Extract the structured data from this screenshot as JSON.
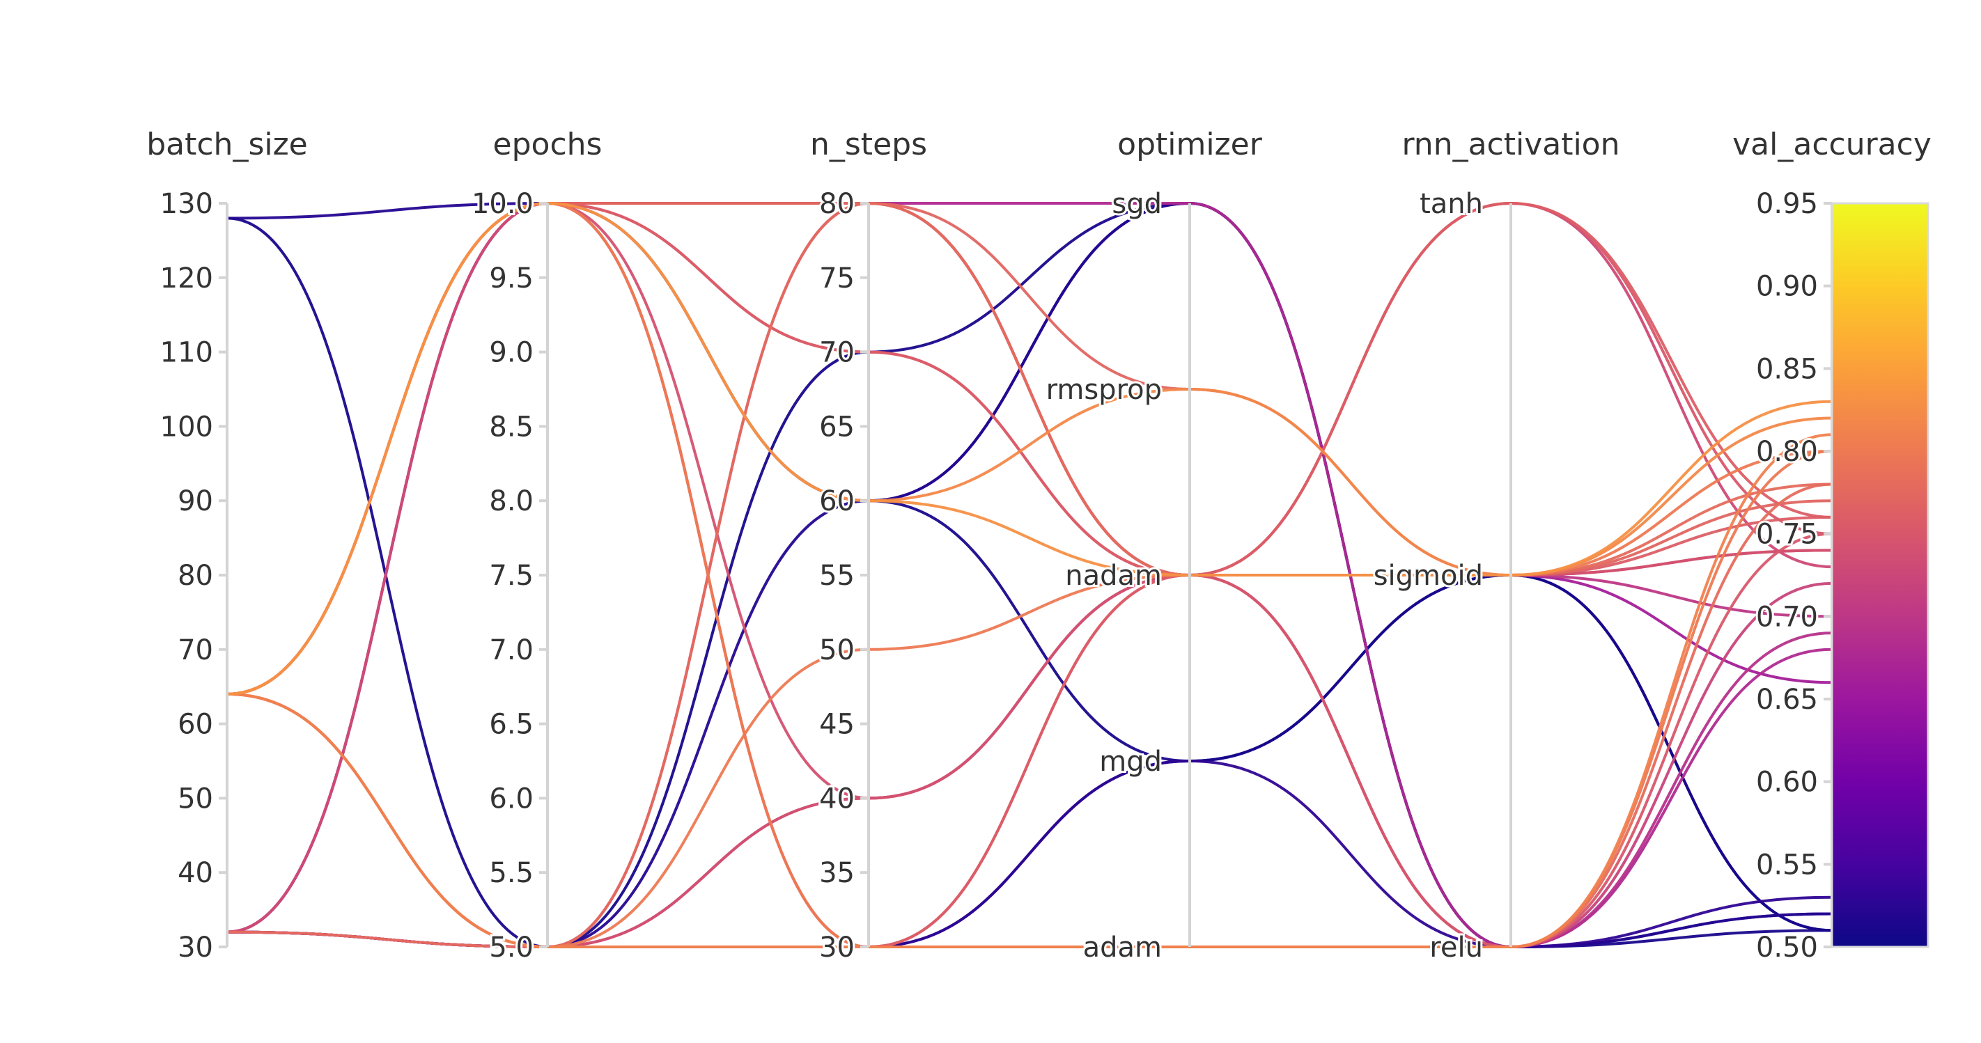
{
  "chart_data": {
    "type": "parcoords",
    "axes": [
      {
        "key": "batch_size",
        "label": "batch_size",
        "kind": "numeric",
        "range": [
          30,
          130
        ],
        "ticks": [
          30,
          40,
          50,
          60,
          70,
          80,
          90,
          100,
          110,
          120,
          130
        ],
        "tick_labels": [
          "30",
          "40",
          "50",
          "60",
          "70",
          "80",
          "90",
          "100",
          "110",
          "120",
          "130"
        ]
      },
      {
        "key": "epochs",
        "label": "epochs",
        "kind": "numeric",
        "range": [
          5,
          10
        ],
        "ticks": [
          5,
          5.5,
          6,
          6.5,
          7,
          7.5,
          8,
          8.5,
          9,
          9.5,
          10
        ],
        "tick_labels": [
          "5.0",
          "5.5",
          "6.0",
          "6.5",
          "7.0",
          "7.5",
          "8.0",
          "8.5",
          "9.0",
          "9.5",
          "10.0"
        ]
      },
      {
        "key": "n_steps",
        "label": "n_steps",
        "kind": "numeric",
        "range": [
          30,
          80
        ],
        "ticks": [
          30,
          35,
          40,
          45,
          50,
          55,
          60,
          65,
          70,
          75,
          80
        ],
        "tick_labels": [
          "30",
          "35",
          "40",
          "45",
          "50",
          "55",
          "60",
          "65",
          "70",
          "75",
          "80"
        ]
      },
      {
        "key": "optimizer",
        "label": "optimizer",
        "kind": "categorical",
        "categories": [
          "sgd",
          "rmsprop",
          "nadam",
          "mgd",
          "adam"
        ]
      },
      {
        "key": "rnn_activation",
        "label": "rnn_activation",
        "kind": "categorical",
        "categories": [
          "tanh",
          "sigmoid",
          "relu"
        ]
      },
      {
        "key": "val_accuracy",
        "label": "val_accuracy",
        "kind": "numeric",
        "range": [
          0.5,
          0.95
        ],
        "ticks": [
          0.5,
          0.55,
          0.6,
          0.65,
          0.7,
          0.75,
          0.8,
          0.85,
          0.9,
          0.95
        ],
        "tick_labels": [
          "0.50",
          "0.55",
          "0.60",
          "0.65",
          "0.70",
          "0.75",
          "0.80",
          "0.85",
          "0.90",
          "0.95"
        ]
      }
    ],
    "colorscale": {
      "name": "plasma",
      "range": [
        0.5,
        0.95
      ],
      "stops": [
        "#0d0887",
        "#46039f",
        "#7201a8",
        "#9c179e",
        "#bd3786",
        "#d8576b",
        "#ed7953",
        "#fb9f3a",
        "#fdca26",
        "#f0f921"
      ]
    },
    "records": [
      {
        "batch_size": 128,
        "epochs": 10,
        "n_steps": 60,
        "optimizer": "sgd",
        "rnn_activation": "relu",
        "val_accuracy": 0.52
      },
      {
        "batch_size": 128,
        "epochs": 5,
        "n_steps": 30,
        "optimizer": "mgd",
        "rnn_activation": "sigmoid",
        "val_accuracy": 0.51
      },
      {
        "batch_size": 32,
        "epochs": 5,
        "n_steps": 60,
        "optimizer": "sgd",
        "rnn_activation": "relu",
        "val_accuracy": 0.52
      },
      {
        "batch_size": 32,
        "epochs": 5,
        "n_steps": 70,
        "optimizer": "sgd",
        "rnn_activation": "relu",
        "val_accuracy": 0.51
      },
      {
        "batch_size": 32,
        "epochs": 10,
        "n_steps": 60,
        "optimizer": "mgd",
        "rnn_activation": "sigmoid",
        "val_accuracy": 0.51
      },
      {
        "batch_size": 32,
        "epochs": 5,
        "n_steps": 30,
        "optimizer": "mgd",
        "rnn_activation": "relu",
        "val_accuracy": 0.53
      },
      {
        "batch_size": 32,
        "epochs": 10,
        "n_steps": 80,
        "optimizer": "nadam",
        "rnn_activation": "sigmoid",
        "val_accuracy": 0.66
      },
      {
        "batch_size": 32,
        "epochs": 5,
        "n_steps": 80,
        "optimizer": "nadam",
        "rnn_activation": "relu",
        "val_accuracy": 0.69
      },
      {
        "batch_size": 32,
        "epochs": 5,
        "n_steps": 40,
        "optimizer": "nadam",
        "rnn_activation": "sigmoid",
        "val_accuracy": 0.7
      },
      {
        "batch_size": 32,
        "epochs": 10,
        "n_steps": 30,
        "optimizer": "nadam",
        "rnn_activation": "tanh",
        "val_accuracy": 0.73
      },
      {
        "batch_size": 32,
        "epochs": 5,
        "n_steps": 30,
        "optimizer": "adam",
        "rnn_activation": "relu",
        "val_accuracy": 0.78
      },
      {
        "batch_size": 32,
        "epochs": 10,
        "n_steps": 70,
        "optimizer": "nadam",
        "rnn_activation": "relu",
        "val_accuracy": 0.72
      },
      {
        "batch_size": 64,
        "epochs": 10,
        "n_steps": 80,
        "optimizer": "sgd",
        "rnn_activation": "relu",
        "val_accuracy": 0.68
      },
      {
        "batch_size": 64,
        "epochs": 5,
        "n_steps": 40,
        "optimizer": "nadam",
        "rnn_activation": "sigmoid",
        "val_accuracy": 0.74
      },
      {
        "batch_size": 64,
        "epochs": 10,
        "n_steps": 30,
        "optimizer": "nadam",
        "rnn_activation": "tanh",
        "val_accuracy": 0.76
      },
      {
        "batch_size": 64,
        "epochs": 5,
        "n_steps": 50,
        "optimizer": "nadam",
        "rnn_activation": "sigmoid",
        "val_accuracy": 0.8
      },
      {
        "batch_size": 64,
        "epochs": 10,
        "n_steps": 60,
        "optimizer": "rmsprop",
        "rnn_activation": "sigmoid",
        "val_accuracy": 0.82
      },
      {
        "batch_size": 64,
        "epochs": 10,
        "n_steps": 80,
        "optimizer": "rmsprop",
        "rnn_activation": "sigmoid",
        "val_accuracy": 0.77
      },
      {
        "batch_size": 64,
        "epochs": 5,
        "n_steps": 30,
        "optimizer": "adam",
        "rnn_activation": "relu",
        "val_accuracy": 0.81
      },
      {
        "batch_size": 64,
        "epochs": 10,
        "n_steps": 30,
        "optimizer": "adam",
        "rnn_activation": "relu",
        "val_accuracy": 0.8
      },
      {
        "batch_size": 64,
        "epochs": 10,
        "n_steps": 80,
        "optimizer": "nadam",
        "rnn_activation": "relu",
        "val_accuracy": 0.75
      },
      {
        "batch_size": 64,
        "epochs": 5,
        "n_steps": 80,
        "optimizer": "nadam",
        "rnn_activation": "sigmoid",
        "val_accuracy": 0.78
      },
      {
        "batch_size": 64,
        "epochs": 10,
        "n_steps": 40,
        "optimizer": "nadam",
        "rnn_activation": "sigmoid",
        "val_accuracy": 0.74
      },
      {
        "batch_size": 64,
        "epochs": 10,
        "n_steps": 70,
        "optimizer": "nadam",
        "rnn_activation": "sigmoid",
        "val_accuracy": 0.76
      },
      {
        "batch_size": 64,
        "epochs": 10,
        "n_steps": 60,
        "optimizer": "nadam",
        "rnn_activation": "sigmoid",
        "val_accuracy": 0.83
      },
      {
        "batch_size": 64,
        "epochs": 10,
        "n_steps": 80,
        "optimizer": "nadam",
        "rnn_activation": "tanh",
        "val_accuracy": 0.75
      }
    ]
  }
}
